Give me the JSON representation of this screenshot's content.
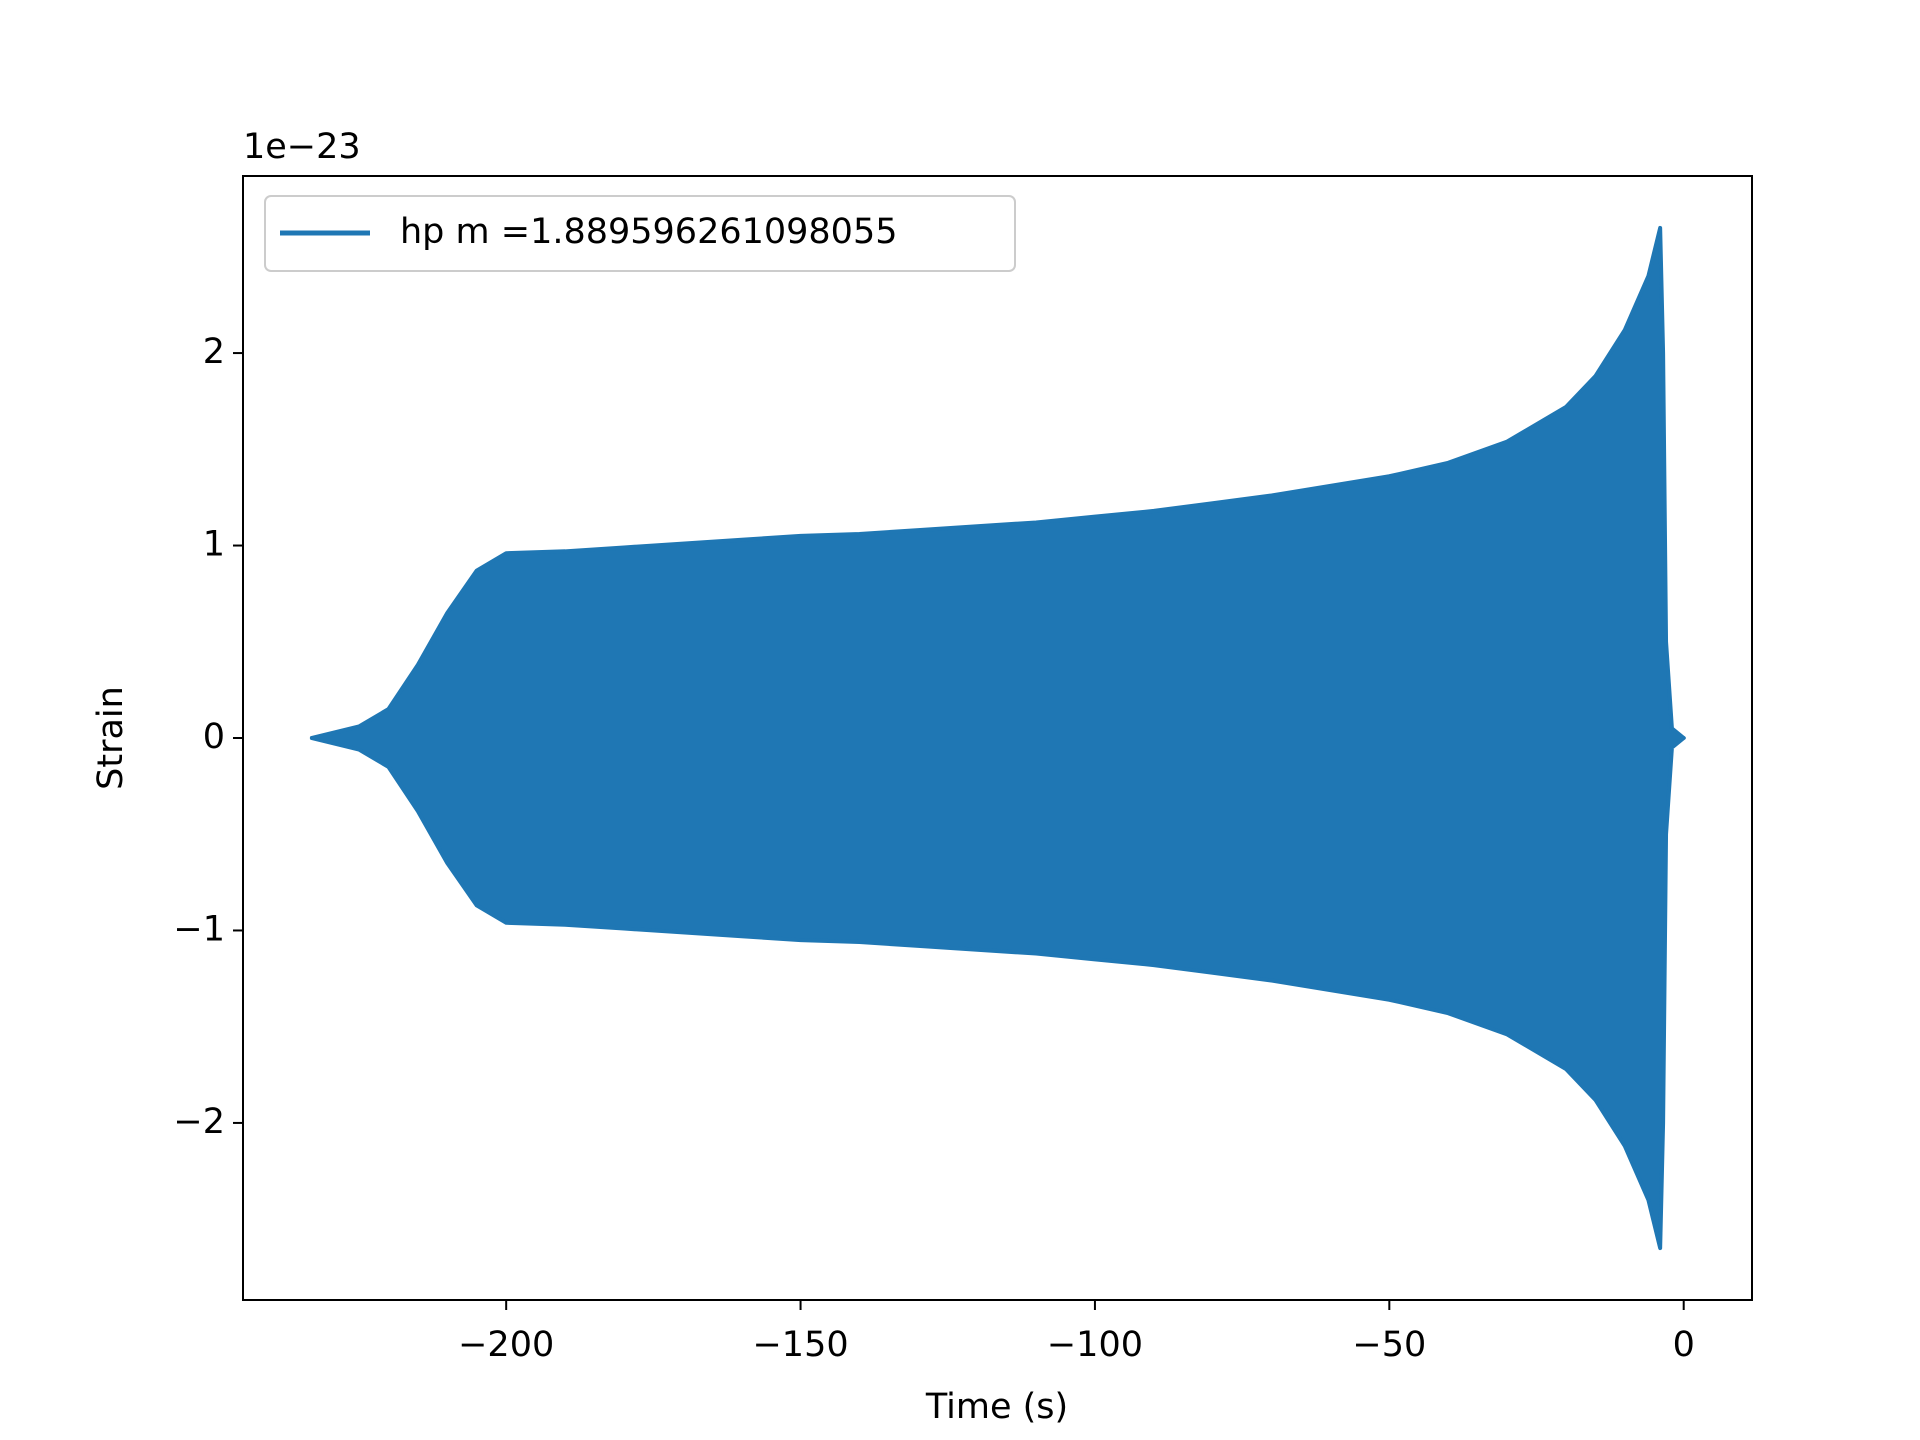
{
  "chart_data": {
    "type": "envelope",
    "xlabel": "Time (s)",
    "ylabel": "Strain",
    "offset_text": "1e−23",
    "x": [
      -233,
      -225,
      -220,
      -215,
      -210,
      -205,
      -200,
      -190,
      -180,
      -170,
      -160,
      -150,
      -140,
      -130,
      -120,
      -110,
      -100,
      -90,
      -80,
      -70,
      -60,
      -50,
      -40,
      -30,
      -20,
      -15,
      -10,
      -6,
      -4,
      -3.5,
      -3,
      -2,
      0
    ],
    "series": [
      {
        "name": "hp m =1.889596261098055",
        "color": "#1f77b4",
        "values": [
          0.0,
          0.06,
          0.15,
          0.38,
          0.65,
          0.87,
          0.96,
          0.97,
          0.99,
          1.01,
          1.03,
          1.05,
          1.06,
          1.08,
          1.1,
          1.12,
          1.15,
          1.18,
          1.22,
          1.26,
          1.31,
          1.36,
          1.43,
          1.54,
          1.72,
          1.88,
          2.12,
          2.4,
          2.65,
          2.0,
          0.5,
          0.05,
          0.0
        ],
        "lower": [
          0.0,
          -0.06,
          -0.15,
          -0.38,
          -0.65,
          -0.87,
          -0.96,
          -0.97,
          -0.99,
          -1.01,
          -1.03,
          -1.05,
          -1.06,
          -1.08,
          -1.1,
          -1.12,
          -1.15,
          -1.18,
          -1.22,
          -1.26,
          -1.31,
          -1.36,
          -1.43,
          -1.54,
          -1.72,
          -1.88,
          -2.12,
          -2.4,
          -2.65,
          -2.0,
          -0.5,
          -0.05,
          0.0
        ]
      }
    ],
    "xlim": [
      -244.7,
      11.6
    ],
    "ylim": [
      -2.92,
      2.92
    ],
    "xticks": [
      {
        "value": -200,
        "label": "−200"
      },
      {
        "value": -150,
        "label": "−150"
      },
      {
        "value": -100,
        "label": "−100"
      },
      {
        "value": -50,
        "label": "−50"
      },
      0
    ],
    "yticks": [
      {
        "value": -2,
        "label": "−2"
      },
      {
        "value": -1,
        "label": "−1"
      },
      0,
      1,
      2
    ],
    "legend": "upper left"
  }
}
